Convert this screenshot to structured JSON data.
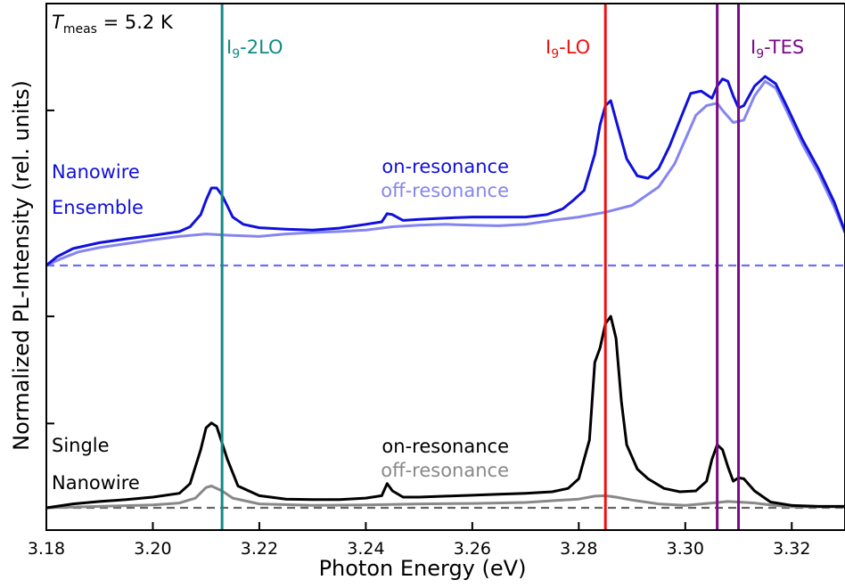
{
  "chart_data": {
    "type": "line",
    "xlabel": "Photon Energy (eV)",
    "ylabel": "Normalized PL-Intensity (rel. units)",
    "xlim": [
      3.18,
      3.33
    ],
    "ylim": [
      0,
      1
    ],
    "x_ticks": [
      "3.18",
      "3.20",
      "3.22",
      "3.24",
      "3.26",
      "3.28",
      "3.30",
      "3.32"
    ],
    "y_ticks_minor": [
      0.174,
      0.395,
      0.82
    ],
    "measurement_label": {
      "symbol": "T",
      "subscript": "meas",
      "value": " = 5.2 K"
    },
    "vlines": [
      {
        "x": 3.213,
        "color": "#118a86",
        "label": {
          "main": "I",
          "sub": "9",
          "rest": "-2LO"
        }
      },
      {
        "x": 3.285,
        "color": "#ee1111",
        "label": {
          "main": "I",
          "sub": "9",
          "rest": "-LO"
        }
      },
      {
        "x": 3.306,
        "color": "#7a0a86",
        "label": {
          "main": "I",
          "sub": "9",
          "rest": "-TES"
        }
      },
      {
        "x": 3.31,
        "color": "#7a0a86",
        "label": null
      }
    ],
    "baselines": [
      {
        "y": 0.5,
        "color": "#6f6ff0"
      },
      {
        "y": 0.0,
        "color": "#666666"
      }
    ],
    "groups": [
      {
        "line1": "Nanowire",
        "line2": "Ensemble",
        "color": "#1010dd"
      },
      {
        "line1": "Single",
        "line2": "Nanowire",
        "color": "#000000"
      }
    ],
    "legends": [
      {
        "on": "on-resonance",
        "off": "off-resonance",
        "on_color": "#1010dd",
        "off_color": "#8585f0"
      },
      {
        "on": "on-resonance",
        "off": "off-resonance",
        "on_color": "#000000",
        "off_color": "#888888"
      }
    ],
    "series": [
      {
        "color": "#1010dd",
        "points": [
          [
            3.18,
            0.5
          ],
          [
            3.182,
            0.518
          ],
          [
            3.185,
            0.535
          ],
          [
            3.19,
            0.547
          ],
          [
            3.195,
            0.555
          ],
          [
            3.2,
            0.562
          ],
          [
            3.205,
            0.57
          ],
          [
            3.207,
            0.58
          ],
          [
            3.209,
            0.605
          ],
          [
            3.21,
            0.635
          ],
          [
            3.211,
            0.66
          ],
          [
            3.212,
            0.66
          ],
          [
            3.213,
            0.645
          ],
          [
            3.215,
            0.6
          ],
          [
            3.217,
            0.585
          ],
          [
            3.22,
            0.578
          ],
          [
            3.225,
            0.575
          ],
          [
            3.23,
            0.573
          ],
          [
            3.235,
            0.577
          ],
          [
            3.24,
            0.585
          ],
          [
            3.243,
            0.59
          ],
          [
            3.244,
            0.607
          ],
          [
            3.245,
            0.605
          ],
          [
            3.247,
            0.593
          ],
          [
            3.25,
            0.595
          ],
          [
            3.255,
            0.598
          ],
          [
            3.26,
            0.6
          ],
          [
            3.265,
            0.6
          ],
          [
            3.27,
            0.6
          ],
          [
            3.274,
            0.605
          ],
          [
            3.277,
            0.617
          ],
          [
            3.279,
            0.635
          ],
          [
            3.281,
            0.655
          ],
          [
            3.283,
            0.73
          ],
          [
            3.284,
            0.79
          ],
          [
            3.285,
            0.83
          ],
          [
            3.286,
            0.84
          ],
          [
            3.287,
            0.8
          ],
          [
            3.289,
            0.72
          ],
          [
            3.291,
            0.685
          ],
          [
            3.293,
            0.68
          ],
          [
            3.295,
            0.7
          ],
          [
            3.297,
            0.745
          ],
          [
            3.299,
            0.8
          ],
          [
            3.301,
            0.855
          ],
          [
            3.303,
            0.86
          ],
          [
            3.305,
            0.845
          ],
          [
            3.306,
            0.87
          ],
          [
            3.307,
            0.885
          ],
          [
            3.308,
            0.88
          ],
          [
            3.309,
            0.85
          ],
          [
            3.31,
            0.825
          ],
          [
            3.311,
            0.83
          ],
          [
            3.313,
            0.87
          ],
          [
            3.315,
            0.89
          ],
          [
            3.317,
            0.875
          ],
          [
            3.319,
            0.83
          ],
          [
            3.322,
            0.76
          ],
          [
            3.325,
            0.7
          ],
          [
            3.328,
            0.63
          ],
          [
            3.331,
            0.54
          ]
        ]
      },
      {
        "color": "#8585f0",
        "points": [
          [
            3.18,
            0.5
          ],
          [
            3.183,
            0.515
          ],
          [
            3.186,
            0.528
          ],
          [
            3.19,
            0.537
          ],
          [
            3.195,
            0.545
          ],
          [
            3.2,
            0.553
          ],
          [
            3.205,
            0.56
          ],
          [
            3.21,
            0.565
          ],
          [
            3.215,
            0.562
          ],
          [
            3.22,
            0.56
          ],
          [
            3.225,
            0.565
          ],
          [
            3.23,
            0.568
          ],
          [
            3.235,
            0.57
          ],
          [
            3.24,
            0.573
          ],
          [
            3.245,
            0.58
          ],
          [
            3.25,
            0.583
          ],
          [
            3.255,
            0.585
          ],
          [
            3.26,
            0.583
          ],
          [
            3.265,
            0.582
          ],
          [
            3.27,
            0.585
          ],
          [
            3.275,
            0.593
          ],
          [
            3.28,
            0.6
          ],
          [
            3.285,
            0.61
          ],
          [
            3.29,
            0.624
          ],
          [
            3.295,
            0.662
          ],
          [
            3.298,
            0.71
          ],
          [
            3.3,
            0.76
          ],
          [
            3.302,
            0.81
          ],
          [
            3.304,
            0.83
          ],
          [
            3.306,
            0.835
          ],
          [
            3.307,
            0.82
          ],
          [
            3.309,
            0.795
          ],
          [
            3.311,
            0.8
          ],
          [
            3.313,
            0.85
          ],
          [
            3.315,
            0.88
          ],
          [
            3.317,
            0.866
          ],
          [
            3.319,
            0.82
          ],
          [
            3.322,
            0.75
          ],
          [
            3.325,
            0.69
          ],
          [
            3.328,
            0.62
          ],
          [
            3.331,
            0.54
          ]
        ]
      },
      {
        "color": "#000000",
        "points": [
          [
            3.18,
            0.0
          ],
          [
            3.185,
            0.008
          ],
          [
            3.19,
            0.013
          ],
          [
            3.195,
            0.017
          ],
          [
            3.2,
            0.022
          ],
          [
            3.205,
            0.03
          ],
          [
            3.207,
            0.05
          ],
          [
            3.209,
            0.12
          ],
          [
            3.21,
            0.165
          ],
          [
            3.211,
            0.175
          ],
          [
            3.212,
            0.168
          ],
          [
            3.214,
            0.1
          ],
          [
            3.216,
            0.045
          ],
          [
            3.22,
            0.025
          ],
          [
            3.225,
            0.018
          ],
          [
            3.23,
            0.017
          ],
          [
            3.235,
            0.017
          ],
          [
            3.24,
            0.02
          ],
          [
            3.243,
            0.025
          ],
          [
            3.244,
            0.05
          ],
          [
            3.245,
            0.035
          ],
          [
            3.247,
            0.022
          ],
          [
            3.25,
            0.022
          ],
          [
            3.255,
            0.024
          ],
          [
            3.26,
            0.026
          ],
          [
            3.265,
            0.028
          ],
          [
            3.27,
            0.03
          ],
          [
            3.275,
            0.033
          ],
          [
            3.278,
            0.04
          ],
          [
            3.28,
            0.06
          ],
          [
            3.282,
            0.14
          ],
          [
            3.283,
            0.3
          ],
          [
            3.284,
            0.33
          ],
          [
            3.285,
            0.38
          ],
          [
            3.286,
            0.395
          ],
          [
            3.287,
            0.35
          ],
          [
            3.288,
            0.22
          ],
          [
            3.289,
            0.13
          ],
          [
            3.291,
            0.08
          ],
          [
            3.293,
            0.06
          ],
          [
            3.296,
            0.04
          ],
          [
            3.299,
            0.033
          ],
          [
            3.302,
            0.035
          ],
          [
            3.304,
            0.055
          ],
          [
            3.305,
            0.1
          ],
          [
            3.306,
            0.13
          ],
          [
            3.307,
            0.12
          ],
          [
            3.308,
            0.085
          ],
          [
            3.309,
            0.055
          ],
          [
            3.31,
            0.062
          ],
          [
            3.311,
            0.06
          ],
          [
            3.313,
            0.035
          ],
          [
            3.316,
            0.012
          ],
          [
            3.32,
            0.005
          ],
          [
            3.325,
            0.003
          ],
          [
            3.331,
            0.003
          ]
        ]
      },
      {
        "color": "#888888",
        "points": [
          [
            3.18,
            0.0
          ],
          [
            3.19,
            0.003
          ],
          [
            3.2,
            0.006
          ],
          [
            3.205,
            0.01
          ],
          [
            3.208,
            0.02
          ],
          [
            3.21,
            0.042
          ],
          [
            3.211,
            0.045
          ],
          [
            3.213,
            0.035
          ],
          [
            3.215,
            0.02
          ],
          [
            3.22,
            0.008
          ],
          [
            3.23,
            0.005
          ],
          [
            3.24,
            0.006
          ],
          [
            3.25,
            0.008
          ],
          [
            3.26,
            0.009
          ],
          [
            3.27,
            0.011
          ],
          [
            3.28,
            0.018
          ],
          [
            3.283,
            0.024
          ],
          [
            3.285,
            0.025
          ],
          [
            3.287,
            0.022
          ],
          [
            3.29,
            0.016
          ],
          [
            3.295,
            0.008
          ],
          [
            3.3,
            0.005
          ],
          [
            3.305,
            0.01
          ],
          [
            3.308,
            0.013
          ],
          [
            3.31,
            0.012
          ],
          [
            3.313,
            0.01
          ],
          [
            3.316,
            0.006
          ],
          [
            3.32,
            0.002
          ],
          [
            3.331,
            0.002
          ]
        ]
      }
    ]
  }
}
